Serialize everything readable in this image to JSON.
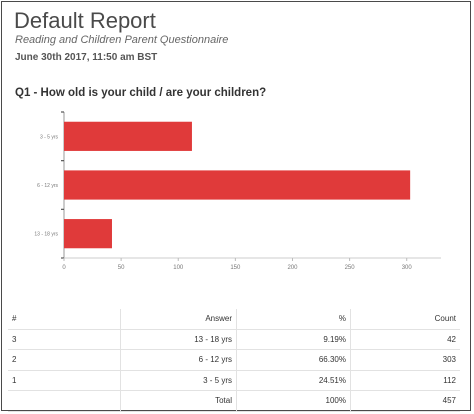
{
  "report": {
    "title": "Default Report",
    "subtitle": "Reading and Children Parent Questionnaire",
    "date": "June 30th 2017, 11:50 am BST",
    "question": "Q1 - How old is your child / are your children?"
  },
  "colors": {
    "bar": "#e03a3a"
  },
  "chart_data": {
    "type": "bar",
    "orientation": "horizontal",
    "categories": [
      "3 - 5 yrs",
      "6 - 12 yrs",
      "13 - 18 yrs"
    ],
    "values": [
      112,
      303,
      42
    ],
    "xlim": [
      0,
      330
    ],
    "xticks": [
      0,
      50,
      100,
      150,
      200,
      250,
      300
    ],
    "grid": false
  },
  "table": {
    "headers": {
      "num": "#",
      "answer": "Answer",
      "pct": "%",
      "count": "Count"
    },
    "rows": [
      {
        "num": "3",
        "answer": "13 - 18 yrs",
        "pct": "9.19%",
        "count": "42"
      },
      {
        "num": "2",
        "answer": "6 - 12 yrs",
        "pct": "66.30%",
        "count": "303"
      },
      {
        "num": "1",
        "answer": "3 - 5 yrs",
        "pct": "24.51%",
        "count": "112"
      }
    ],
    "total": {
      "num": "",
      "answer": "Total",
      "pct": "100%",
      "count": "457"
    }
  }
}
